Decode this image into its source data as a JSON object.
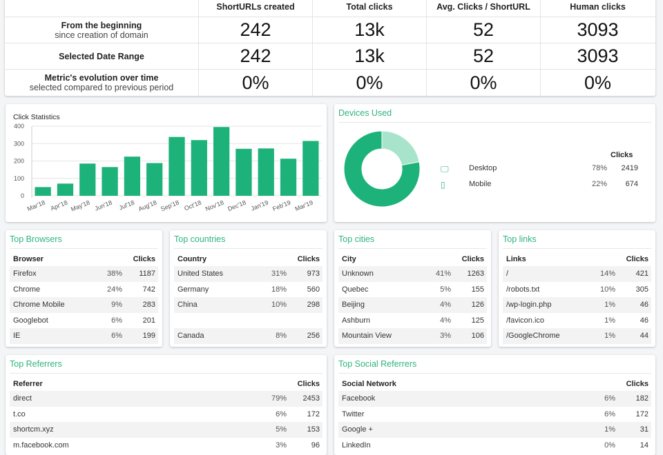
{
  "summary": {
    "headers": [
      "ShortURLs created",
      "Total clicks",
      "Avg. Clicks / ShortURL",
      "Human clicks"
    ],
    "rows": [
      {
        "label1": "From the beginning",
        "label2": "since creation of domain",
        "values": [
          "242",
          "13k",
          "52",
          "3093"
        ]
      },
      {
        "label1": "Selected Date Range",
        "label2": "",
        "values": [
          "242",
          "13k",
          "52",
          "3093"
        ]
      },
      {
        "label1": "Metric's evolution over time",
        "label2": "selected compared to previous period",
        "values": [
          "0%",
          "0%",
          "0%",
          "0%"
        ]
      }
    ]
  },
  "chart": {
    "title": "Click Statistics"
  },
  "chart_data": {
    "type": "bar",
    "title": "Click Statistics",
    "categories": [
      "Mar'18",
      "Apr'18",
      "May'18",
      "Jun'18",
      "Jul'18",
      "Aug'18",
      "Sep'18",
      "Oct'18",
      "Nov'18",
      "Dec'18",
      "Jan'19",
      "Feb'19",
      "Mar'19"
    ],
    "values": [
      50,
      70,
      185,
      165,
      225,
      188,
      338,
      320,
      395,
      270,
      272,
      213,
      315
    ],
    "ylim": [
      0,
      400
    ],
    "yticks": [
      0,
      100,
      200,
      300,
      400
    ],
    "color": "#1cb27a"
  },
  "devices": {
    "title": "Devices Used",
    "clicks_header": "Clicks",
    "items": [
      {
        "icon": "desktop-icon",
        "glyph": "🖵",
        "name": "Desktop",
        "pct": "78%",
        "clicks": "2419",
        "share": 0.78,
        "color": "#1cb27a"
      },
      {
        "icon": "mobile-icon",
        "glyph": "▯",
        "name": "Mobile",
        "pct": "22%",
        "clicks": "674",
        "share": 0.22,
        "color": "#a8e3cb"
      }
    ]
  },
  "browsers": {
    "title": "Top Browsers",
    "header": [
      "Browser",
      "Clicks"
    ],
    "rows": [
      [
        "Firefox",
        "38%",
        "1187"
      ],
      [
        "Chrome",
        "24%",
        "742"
      ],
      [
        "Chrome Mobile",
        "9%",
        "283"
      ],
      [
        "Googlebot",
        "6%",
        "201"
      ],
      [
        "IE",
        "6%",
        "199"
      ]
    ]
  },
  "countries": {
    "title": "Top countries",
    "header": [
      "Country",
      "Clicks"
    ],
    "rows": [
      [
        "United States",
        "31%",
        "973"
      ],
      [
        "Germany",
        "18%",
        "560"
      ],
      [
        "China",
        "10%",
        "298"
      ],
      [
        "",
        "",
        ""
      ],
      [
        "Canada",
        "8%",
        "256"
      ]
    ]
  },
  "cities": {
    "title": "Top cities",
    "header": [
      "City",
      "Clicks"
    ],
    "rows": [
      [
        "Unknown",
        "41%",
        "1263"
      ],
      [
        "Quebec",
        "5%",
        "155"
      ],
      [
        "Beijing",
        "4%",
        "126"
      ],
      [
        "Ashburn",
        "4%",
        "125"
      ],
      [
        "Mountain View",
        "3%",
        "106"
      ]
    ]
  },
  "links": {
    "title": "Top links",
    "header": [
      "Links",
      "Clicks"
    ],
    "rows": [
      [
        "/",
        "14%",
        "421"
      ],
      [
        "/robots.txt",
        "10%",
        "305"
      ],
      [
        "/wp-login.php",
        "1%",
        "46"
      ],
      [
        "/favicon.ico",
        "1%",
        "46"
      ],
      [
        "/GoogleChrome",
        "1%",
        "44"
      ]
    ]
  },
  "referrers": {
    "title": "Top Referrers",
    "header": [
      "Referrer",
      "Clicks"
    ],
    "rows": [
      [
        "direct",
        "79%",
        "2453"
      ],
      [
        "t.co",
        "6%",
        "172"
      ],
      [
        "shortcm.xyz",
        "5%",
        "153"
      ],
      [
        "m.facebook.com",
        "3%",
        "96"
      ]
    ]
  },
  "social": {
    "title": "Top Social Referrers",
    "header": [
      "Social Network",
      "Clicks"
    ],
    "rows": [
      [
        "Facebook",
        "6%",
        "182"
      ],
      [
        "Twitter",
        "6%",
        "172"
      ],
      [
        "Google +",
        "1%",
        "31"
      ],
      [
        "LinkedIn",
        "0%",
        "14"
      ]
    ]
  }
}
